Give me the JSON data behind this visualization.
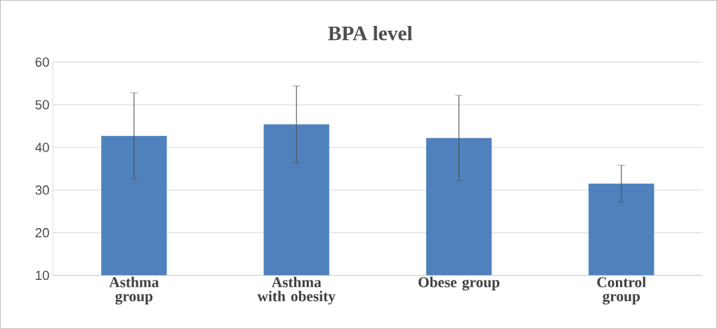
{
  "chart_data": {
    "type": "bar",
    "title": "BPA level",
    "categories": [
      "Asthma group",
      "Asthma with obesity",
      "Obese group",
      "Control group"
    ],
    "values": [
      42.7,
      45.4,
      42.2,
      31.5
    ],
    "errors": [
      10.1,
      9,
      10,
      4.3
    ],
    "color": "#4f81bd",
    "ylim": [
      10,
      60
    ],
    "yticks": [
      10,
      20,
      30,
      40,
      50,
      60
    ],
    "grid": "y"
  }
}
